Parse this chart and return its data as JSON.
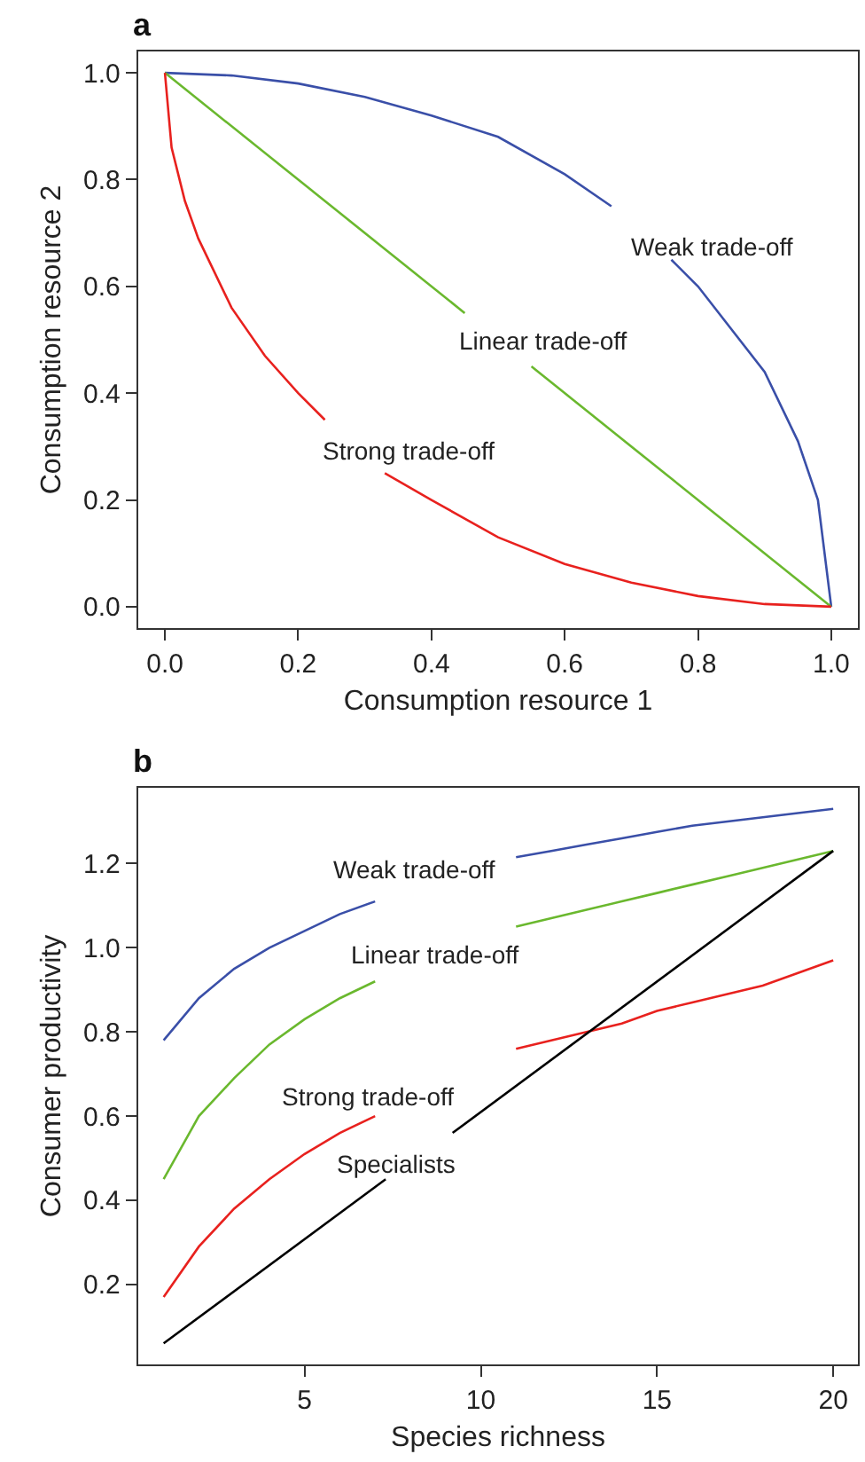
{
  "chart_data": [
    {
      "type": "line",
      "title": "a",
      "xlabel": "Consumption resource 1",
      "ylabel": "Consumption resource 2",
      "xlim": [
        -0.04,
        1.04
      ],
      "ylim": [
        -0.04,
        1.04
      ],
      "xticks": [
        {
          "value": 0,
          "label": "0.0"
        },
        {
          "value": 0.2,
          "label": "0.2"
        },
        {
          "value": 0.4,
          "label": "0.4"
        },
        {
          "value": 0.6,
          "label": "0.6"
        },
        {
          "value": 0.8,
          "label": "0.8"
        },
        {
          "value": 1,
          "label": "1.0"
        }
      ],
      "yticks": [
        {
          "value": 0,
          "label": "0.0"
        },
        {
          "value": 0.2,
          "label": "0.2"
        },
        {
          "value": 0.4,
          "label": "0.4"
        },
        {
          "value": 0.6,
          "label": "0.6"
        },
        {
          "value": 0.8,
          "label": "0.8"
        },
        {
          "value": 1,
          "label": "1.0"
        }
      ],
      "marker": "none",
      "line_style": "solid",
      "series": [
        {
          "name": "Weak trade-off",
          "color": "#3a4fa8",
          "x": [
            0,
            0.1,
            0.2,
            0.3,
            0.4,
            0.5,
            0.6,
            0.67,
            0.72,
            0.76,
            0.8,
            0.9,
            0.95,
            0.98,
            1.0
          ],
          "values": [
            1,
            0.995,
            0.98,
            0.955,
            0.92,
            0.88,
            0.81,
            0.75,
            null,
            0.65,
            0.6,
            0.44,
            0.31,
            0.2,
            0
          ]
        },
        {
          "name": "Linear trade-off",
          "color": "#6ab82e",
          "x": [
            0,
            0.45,
            0.5,
            0.55,
            1
          ],
          "values": [
            1,
            0.55,
            null,
            0.45,
            0
          ]
        },
        {
          "name": "Strong trade-off",
          "color": "#e8211e",
          "x": [
            0,
            0.01,
            0.03,
            0.05,
            0.1,
            0.15,
            0.2,
            0.24,
            0.28,
            0.33,
            0.4,
            0.5,
            0.6,
            0.7,
            0.8,
            0.9,
            1.0
          ],
          "values": [
            1,
            0.86,
            0.76,
            0.69,
            0.56,
            0.47,
            0.4,
            0.35,
            null,
            0.25,
            0.2,
            0.13,
            0.08,
            0.045,
            0.02,
            0.005,
            0
          ]
        }
      ]
    },
    {
      "type": "line",
      "title": "b",
      "xlabel": "Species richness",
      "ylabel": "Consumer productivity",
      "xlim": [
        0.28,
        20.7
      ],
      "ylim": [
        0.01,
        1.38
      ],
      "xticks": [
        5,
        10,
        15,
        20
      ],
      "yticks": [
        0.2,
        0.4,
        0.6,
        0.8,
        {
          "value": 1.0,
          "label": "1.0"
        },
        1.2
      ],
      "marker": "none",
      "line_style": "solid",
      "x": [
        1,
        2,
        3,
        4,
        5,
        6,
        7,
        8,
        9,
        10,
        11,
        12,
        13,
        14,
        15,
        16,
        17,
        18,
        19,
        20
      ],
      "series": [
        {
          "name": "Weak trade-off",
          "color": "#3a4fa8",
          "values": [
            0.78,
            0.88,
            0.95,
            1.0,
            1.04,
            1.08,
            1.11,
            null,
            null,
            null,
            1.215,
            1.23,
            1.245,
            1.26,
            1.275,
            1.29,
            1.3,
            1.31,
            1.32,
            1.33
          ]
        },
        {
          "name": "Linear trade-off",
          "color": "#6ab82e",
          "values": [
            0.45,
            0.6,
            0.69,
            0.77,
            0.83,
            0.88,
            0.92,
            null,
            null,
            null,
            1.05,
            1.07,
            1.09,
            1.11,
            1.13,
            1.15,
            1.17,
            1.19,
            1.21,
            1.23
          ]
        },
        {
          "name": "Strong trade-off",
          "color": "#e8211e",
          "values": [
            0.17,
            0.29,
            0.38,
            0.45,
            0.51,
            0.56,
            0.6,
            null,
            null,
            null,
            0.76,
            0.78,
            0.8,
            0.82,
            0.85,
            0.87,
            0.89,
            0.91,
            0.94,
            0.97
          ]
        },
        {
          "name": "Specialists",
          "color": "#000000",
          "x": [
            1,
            7.3,
            8.2,
            9.2,
            20
          ],
          "values": [
            0.06,
            0.45,
            null,
            0.56,
            1.23
          ]
        }
      ]
    }
  ]
}
